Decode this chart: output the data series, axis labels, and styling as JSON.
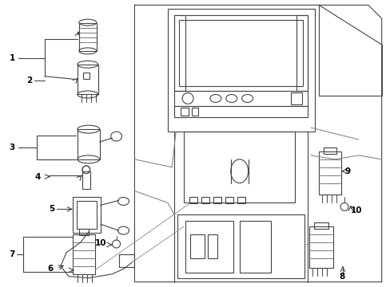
{
  "bg_color": "#ffffff",
  "fig_width": 4.89,
  "fig_height": 3.6,
  "dpi": 100,
  "line_color": "#444444",
  "light_line": "#888888"
}
